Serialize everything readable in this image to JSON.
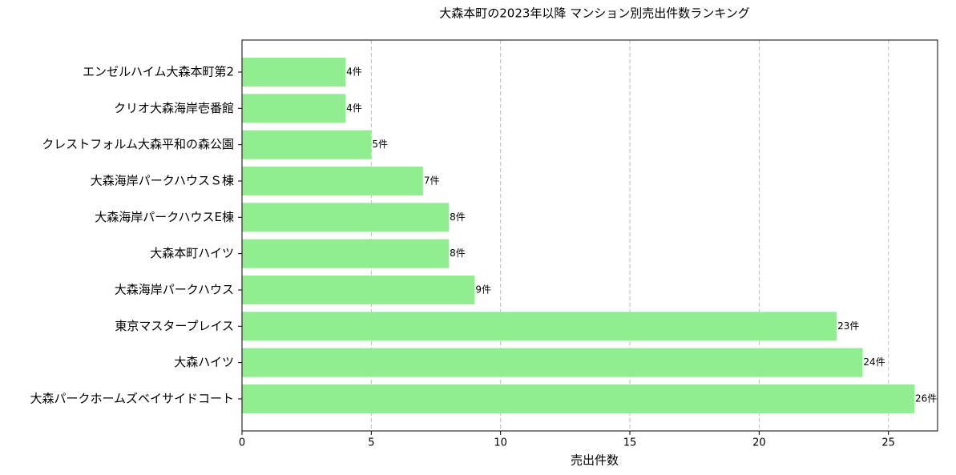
{
  "chart_data": {
    "type": "barh",
    "title": "大森本町の2023年以降 マンション別売出件数ランキング",
    "xlabel": "売出件数",
    "categories": [
      "エンゼルハイム大森本町第2",
      "クリオ大森海岸壱番館",
      "クレストフォルム大森平和の森公園",
      "大森海岸パークハウスＳ棟",
      "大森海岸パークハウスE棟",
      "大森本町ハイツ",
      "大森海岸パークハウス",
      "東京マスタープレイス",
      "大森ハイツ",
      "大森パークホームズベイサイドコート"
    ],
    "values": [
      4,
      4,
      5,
      7,
      8,
      8,
      9,
      23,
      24,
      26
    ],
    "value_labels": [
      "4件",
      "4件",
      "5件",
      "7件",
      "8件",
      "8件",
      "9件",
      "23件",
      "24件",
      "26件"
    ],
    "color": "#90ee90",
    "xlim": [
      0,
      26.9
    ],
    "xticks": [
      0,
      5,
      10,
      15,
      20,
      25
    ],
    "grid": true
  }
}
